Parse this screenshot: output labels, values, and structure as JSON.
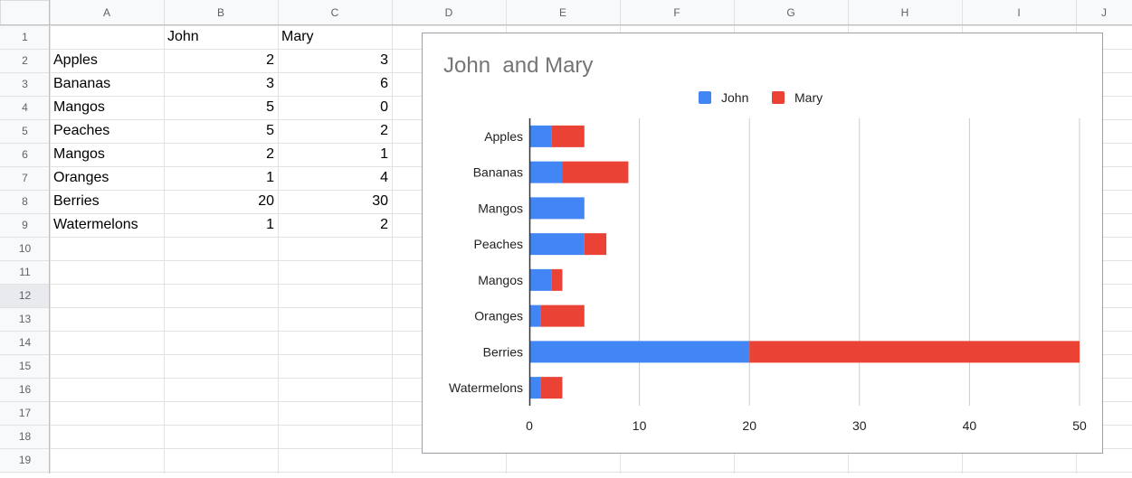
{
  "sheet": {
    "columns": [
      "A",
      "B",
      "C",
      "D",
      "E",
      "F",
      "G",
      "H",
      "I",
      "J"
    ],
    "rows": [
      "1",
      "2",
      "3",
      "4",
      "5",
      "6",
      "7",
      "8",
      "9",
      "10",
      "11",
      "12",
      "13",
      "14",
      "15",
      "16",
      "17",
      "18",
      "19"
    ],
    "selected_row": "12",
    "header": {
      "b": "John",
      "c": "Mary"
    },
    "data": [
      {
        "a": "Apples",
        "b": "2",
        "c": "3"
      },
      {
        "a": "Bananas",
        "b": "3",
        "c": "6"
      },
      {
        "a": "Mangos",
        "b": "5",
        "c": "0"
      },
      {
        "a": "Peaches",
        "b": "5",
        "c": "2"
      },
      {
        "a": "Mangos",
        "b": "2",
        "c": "1"
      },
      {
        "a": "Oranges",
        "b": "1",
        "c": "4"
      },
      {
        "a": "Berries",
        "b": "20",
        "c": "30"
      },
      {
        "a": "Watermelons",
        "b": "1",
        "c": "2"
      }
    ]
  },
  "chart_data": {
    "type": "bar",
    "orientation": "horizontal",
    "stacked": true,
    "title": "John  and Mary",
    "categories": [
      "Apples",
      "Bananas",
      "Mangos",
      "Peaches",
      "Mangos",
      "Oranges",
      "Berries",
      "Watermelons"
    ],
    "series": [
      {
        "name": "John",
        "color": "#4285f4",
        "values": [
          2,
          3,
          5,
          5,
          2,
          1,
          20,
          1
        ]
      },
      {
        "name": "Mary",
        "color": "#ea4335",
        "values": [
          3,
          6,
          0,
          2,
          1,
          4,
          30,
          2
        ]
      }
    ],
    "xticks": [
      0,
      10,
      20,
      30,
      40,
      50
    ],
    "xlim": [
      0,
      50
    ],
    "legend_position": "top",
    "grid": true
  }
}
